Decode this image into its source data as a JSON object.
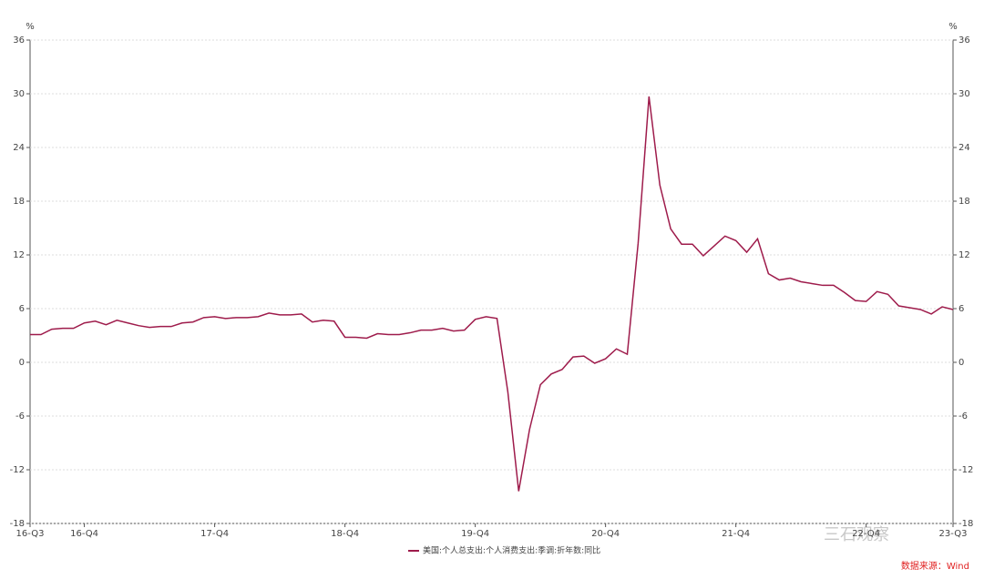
{
  "chart_data": {
    "type": "line",
    "y_unit": "%",
    "y2_unit": "%",
    "categories": [
      "16-Q3",
      null,
      null,
      null,
      null,
      "16-Q4",
      null,
      null,
      null,
      null,
      null,
      null,
      null,
      null,
      null,
      null,
      null,
      "17-Q4",
      null,
      null,
      null,
      null,
      null,
      null,
      null,
      null,
      null,
      null,
      null,
      "18-Q4",
      null,
      null,
      null,
      null,
      null,
      null,
      null,
      null,
      null,
      null,
      null,
      "19-Q4",
      null,
      null,
      null,
      null,
      null,
      null,
      null,
      null,
      null,
      null,
      null,
      "20-Q4",
      null,
      null,
      null,
      null,
      null,
      null,
      null,
      null,
      null,
      null,
      null,
      "21-Q4",
      null,
      null,
      null,
      null,
      null,
      null,
      null,
      null,
      null,
      null,
      null,
      "22-Q4",
      null,
      null,
      null,
      null,
      null,
      null,
      null,
      "23-Q3"
    ],
    "series": [
      {
        "name": "美国:个人总支出:个人消费支出:季调:折年数:同比",
        "color": "#9e1b4b",
        "values": [
          3.1,
          3.1,
          3.7,
          3.8,
          3.8,
          4.4,
          4.6,
          4.2,
          4.7,
          4.4,
          4.1,
          3.9,
          4.0,
          4.0,
          4.4,
          4.5,
          5.0,
          5.1,
          4.9,
          5.0,
          5.0,
          5.1,
          5.5,
          5.3,
          5.3,
          5.4,
          4.5,
          4.7,
          4.6,
          2.8,
          2.8,
          2.7,
          3.2,
          3.1,
          3.1,
          3.3,
          3.6,
          3.6,
          3.8,
          3.5,
          3.6,
          4.8,
          5.1,
          4.9,
          -3.3,
          -14.4,
          -7.5,
          -2.5,
          -1.3,
          -0.8,
          0.6,
          0.7,
          -0.1,
          0.4,
          1.5,
          0.9,
          13.3,
          29.7,
          19.8,
          14.9,
          13.2,
          13.2,
          11.9,
          13.0,
          14.1,
          13.6,
          12.3,
          13.8,
          9.9,
          9.2,
          9.4,
          9.0,
          8.8,
          8.6,
          8.6,
          7.8,
          6.9,
          6.8,
          7.9,
          7.6,
          6.3,
          6.1,
          5.9,
          5.4,
          6.2,
          5.9
        ]
      }
    ],
    "ylim": [
      -18,
      36
    ],
    "yticks": [
      -18,
      -12,
      -6,
      0,
      6,
      12,
      18,
      24,
      30,
      36
    ],
    "y2lim": [
      -18,
      36
    ],
    "y2ticks": [
      -18,
      -12,
      -6,
      0,
      6,
      12,
      18,
      24,
      30,
      36
    ],
    "grid": true,
    "source": "数据来源：Wind",
    "watermark": "三石观察"
  }
}
